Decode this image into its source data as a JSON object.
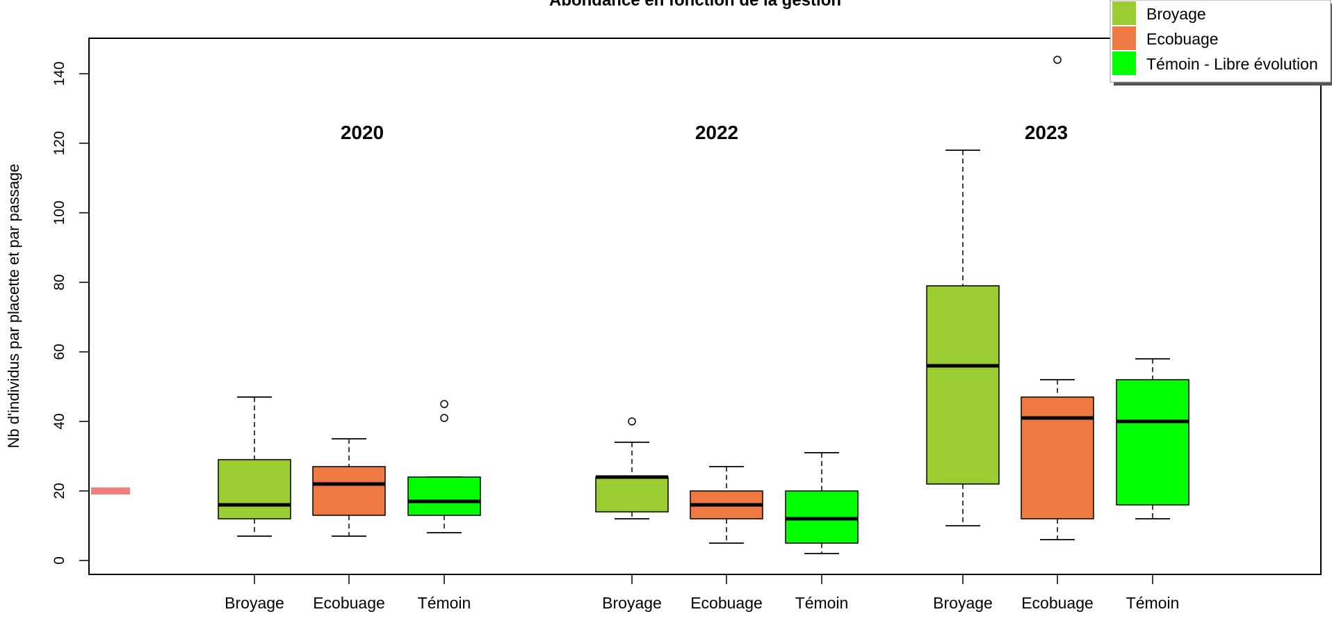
{
  "chart_data": {
    "type": "boxplot",
    "title": "Abondance en fonction de la gestion",
    "ylabel": "Nb d'individus par placette et par passage",
    "xlabel": "",
    "ylim": [
      -4,
      150
    ],
    "y_ticks": [
      0,
      20,
      40,
      60,
      80,
      100,
      120,
      140
    ],
    "grid": false,
    "legend_position": "top-right",
    "legend": [
      {
        "label": "Broyage",
        "color": "#9ACD32"
      },
      {
        "label": "Ecobuage",
        "color": "#EE7942"
      },
      {
        "label": "Témoin - Libre évolution",
        "color": "#00FF00"
      }
    ],
    "reference_mark": {
      "y": 20,
      "color": "#F47E7A"
    },
    "groups": [
      {
        "label": "2020",
        "boxes": [
          {
            "name": "Broyage",
            "color": "#9ACD32",
            "min": 7,
            "q1": 12,
            "median": 16,
            "q3": 29,
            "max": 47,
            "outliers": []
          },
          {
            "name": "Ecobuage",
            "color": "#EE7942",
            "min": 7,
            "q1": 13,
            "median": 22,
            "q3": 27,
            "max": 35,
            "outliers": []
          },
          {
            "name": "Témoin",
            "color": "#00FF00",
            "min": 8,
            "q1": 13,
            "median": 17,
            "q3": 24,
            "max": 24,
            "outliers": [
              41,
              45
            ]
          }
        ]
      },
      {
        "label": "2022",
        "boxes": [
          {
            "name": "Broyage",
            "color": "#9ACD32",
            "min": 12,
            "q1": 14,
            "median": 24,
            "q3": 24,
            "max": 34,
            "outliers": [
              40
            ]
          },
          {
            "name": "Ecobuage",
            "color": "#EE7942",
            "min": 5,
            "q1": 12,
            "median": 16,
            "q3": 20,
            "max": 27,
            "outliers": []
          },
          {
            "name": "Témoin",
            "color": "#00FF00",
            "min": 2,
            "q1": 5,
            "median": 12,
            "q3": 20,
            "max": 31,
            "outliers": []
          }
        ]
      },
      {
        "label": "2023",
        "boxes": [
          {
            "name": "Broyage",
            "color": "#9ACD32",
            "min": 10,
            "q1": 22,
            "median": 56,
            "q3": 79,
            "max": 118,
            "outliers": []
          },
          {
            "name": "Ecobuage",
            "color": "#EE7942",
            "min": 6,
            "q1": 12,
            "median": 41,
            "q3": 47,
            "max": 52,
            "outliers": [
              144
            ]
          },
          {
            "name": "Témoin",
            "color": "#00FF00",
            "min": 12,
            "q1": 16,
            "median": 40,
            "q3": 52,
            "max": 58,
            "outliers": []
          }
        ]
      }
    ]
  }
}
